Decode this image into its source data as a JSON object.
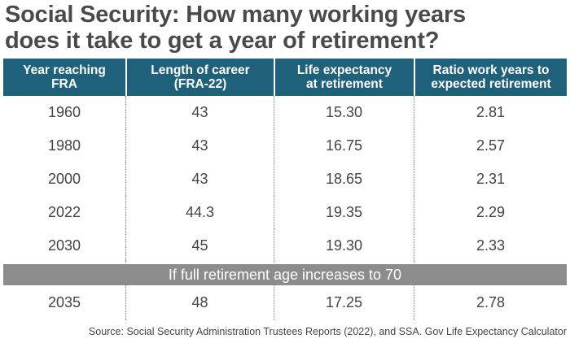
{
  "title": {
    "line1": "Social Security: How many working years",
    "line2": "does it take to get a year of retirement?"
  },
  "table": {
    "headers": [
      [
        "Year reaching",
        "FRA"
      ],
      [
        "Length of career",
        "(FRA-22)"
      ],
      [
        "Life expectancy",
        "at retirement"
      ],
      [
        "Ratio work years to",
        "expected retirement"
      ]
    ],
    "rows": [
      [
        "1960",
        "43",
        "15.30",
        "2.81"
      ],
      [
        "1980",
        "43",
        "16.75",
        "2.57"
      ],
      [
        "2000",
        "43",
        "18.65",
        "2.31"
      ],
      [
        "2022",
        "44.3",
        "19.35",
        "2.29"
      ],
      [
        "2030",
        "45",
        "19.30",
        "2.33"
      ]
    ],
    "banner": "If full retirement age increases to 70",
    "after_banner_rows": [
      [
        "2035",
        "48",
        "17.25",
        "2.78"
      ]
    ]
  },
  "source": "Source: Social Security Administration Trustees Reports (2022), and SSA. Gov Life Expectancy Calculator",
  "colors": {
    "header_bg": "#1f617a",
    "banner_bg": "#8c8c8c"
  }
}
